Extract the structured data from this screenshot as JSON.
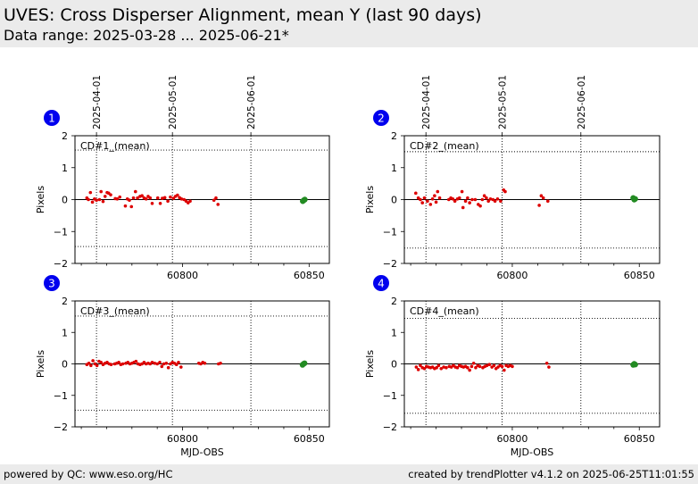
{
  "header": {
    "title": "UVES: Cross Disperser Alignment, mean Y (last 90 days)",
    "subtitle": "Data range: 2025-03-28 ... 2025-06-21*"
  },
  "footer": {
    "left": "powered by QC: www.eso.org/HC",
    "right": "created by trendPlotter v4.1.2 on 2025-06-25T11:01:55"
  },
  "colors": {
    "points": "#dd0000",
    "latest": "#228b22",
    "badge": "#0000ee"
  },
  "chart_data": [
    {
      "type": "scatter",
      "badge": "1",
      "label": "CD#1_(mean)",
      "ylabel": "Pixels",
      "xlabel": "",
      "xlim": [
        60757.5,
        60858
      ],
      "ylim": [
        -2,
        2
      ],
      "yticks": [
        -2,
        -1,
        0,
        1,
        2
      ],
      "ytick_labels": [
        "−2",
        "−1",
        "0",
        "1",
        "2"
      ],
      "xticks": [
        60800,
        60850
      ],
      "xtick_labels": [
        "60800",
        "60850"
      ],
      "date_ticks": [
        {
          "x": 60766,
          "label": "2025-04-01"
        },
        {
          "x": 60796,
          "label": "2025-05-01"
        },
        {
          "x": 60827,
          "label": "2025-06-01"
        }
      ],
      "hlines": [
        1.55,
        0,
        -1.47
      ],
      "points": [
        [
          60762.2,
          0.05
        ],
        [
          60762.8,
          0.0
        ],
        [
          60763.6,
          0.22
        ],
        [
          60764.4,
          -0.08
        ],
        [
          60765.2,
          0.02
        ],
        [
          60766,
          -0.02
        ],
        [
          60767.2,
          0.0
        ],
        [
          60767.8,
          0.25
        ],
        [
          60768.6,
          -0.06
        ],
        [
          60769.4,
          0.1
        ],
        [
          60770.2,
          0.22
        ],
        [
          60770.8,
          0.2
        ],
        [
          60771.6,
          0.15
        ],
        [
          60773.4,
          0.03
        ],
        [
          60774.2,
          0.02
        ],
        [
          60775.2,
          0.08
        ],
        [
          60777.4,
          -0.2
        ],
        [
          60778.2,
          0.02
        ],
        [
          60779,
          -0.02
        ],
        [
          60779.8,
          -0.22
        ],
        [
          60780.6,
          0.05
        ],
        [
          60781.4,
          0.25
        ],
        [
          60782.2,
          0.05
        ],
        [
          60783.2,
          0.1
        ],
        [
          60784,
          0.12
        ],
        [
          60784.8,
          0.05
        ],
        [
          60785.6,
          0.02
        ],
        [
          60786.4,
          0.1
        ],
        [
          60787.2,
          0.05
        ],
        [
          60788,
          -0.12
        ],
        [
          60790.2,
          0.05
        ],
        [
          60791.2,
          -0.12
        ],
        [
          60792,
          0.04
        ],
        [
          60793,
          0.06
        ],
        [
          60794.2,
          -0.05
        ],
        [
          60795.2,
          0.08
        ],
        [
          60796.4,
          0.04
        ],
        [
          60797.2,
          0.1
        ],
        [
          60798,
          0.14
        ],
        [
          60798.8,
          0.06
        ],
        [
          60799.6,
          0.02
        ],
        [
          60800.6,
          0.0
        ],
        [
          60801.4,
          -0.05
        ],
        [
          60802.2,
          -0.1
        ],
        [
          60803,
          -0.05
        ],
        [
          60812.4,
          -0.02
        ],
        [
          60813.2,
          0.05
        ],
        [
          60814,
          -0.15
        ]
      ],
      "latest": [
        [
          60847.5,
          -0.05
        ],
        [
          60847.9,
          -0.02
        ],
        [
          60848.3,
          0.0
        ]
      ]
    },
    {
      "type": "scatter",
      "badge": "2",
      "label": "CD#2_(mean)",
      "ylabel": "Pixels",
      "xlabel": "",
      "xlim": [
        60757.5,
        60858
      ],
      "ylim": [
        -2,
        2
      ],
      "yticks": [
        -2,
        -1,
        0,
        1,
        2
      ],
      "ytick_labels": [
        "−2",
        "−1",
        "0",
        "1",
        "2"
      ],
      "xticks": [
        60800,
        60850
      ],
      "xtick_labels": [
        "60800",
        "60850"
      ],
      "date_ticks": [
        {
          "x": 60766,
          "label": "2025-04-01"
        },
        {
          "x": 60796,
          "label": "2025-05-01"
        },
        {
          "x": 60827,
          "label": "2025-06-01"
        }
      ],
      "hlines": [
        1.5,
        0,
        -1.52
      ],
      "points": [
        [
          60762,
          0.2
        ],
        [
          60763,
          0.05
        ],
        [
          60763.8,
          0.0
        ],
        [
          60764.6,
          -0.1
        ],
        [
          60765.4,
          0.05
        ],
        [
          60766.6,
          -0.05
        ],
        [
          60767.8,
          -0.15
        ],
        [
          60768.6,
          0.02
        ],
        [
          60769.4,
          0.12
        ],
        [
          60770,
          -0.08
        ],
        [
          60770.6,
          0.25
        ],
        [
          60771.4,
          0.05
        ],
        [
          60775,
          0.0
        ],
        [
          60775.8,
          0.05
        ],
        [
          60776.6,
          0.02
        ],
        [
          60777.4,
          -0.05
        ],
        [
          60778.4,
          0.02
        ],
        [
          60779.2,
          0.05
        ],
        [
          60780.2,
          0.25
        ],
        [
          60780.6,
          -0.25
        ],
        [
          60781.6,
          -0.05
        ],
        [
          60782.4,
          0.05
        ],
        [
          60783.2,
          -0.1
        ],
        [
          60784.2,
          0.0
        ],
        [
          60785.4,
          0.0
        ],
        [
          60786.6,
          -0.15
        ],
        [
          60787.4,
          -0.2
        ],
        [
          60788.2,
          0.0
        ],
        [
          60789,
          0.12
        ],
        [
          60789.8,
          0.05
        ],
        [
          60790.6,
          -0.05
        ],
        [
          60791.4,
          0.02
        ],
        [
          60792.4,
          0.0
        ],
        [
          60793.2,
          -0.05
        ],
        [
          60794.2,
          0.02
        ],
        [
          60795.4,
          -0.05
        ],
        [
          60796.6,
          0.3
        ],
        [
          60797.2,
          0.25
        ],
        [
          60810.6,
          -0.18
        ],
        [
          60811.4,
          0.12
        ],
        [
          60812.2,
          0.05
        ],
        [
          60814,
          -0.05
        ]
      ],
      "latest": [
        [
          60847.6,
          0.05
        ],
        [
          60848,
          0.0
        ],
        [
          60848.4,
          0.02
        ]
      ]
    },
    {
      "type": "scatter",
      "badge": "3",
      "label": "CD#3_(mean)",
      "ylabel": "Pixels",
      "xlabel": "MJD-OBS",
      "xlim": [
        60757.5,
        60858
      ],
      "ylim": [
        -2,
        2
      ],
      "yticks": [
        -2,
        -1,
        0,
        1,
        2
      ],
      "ytick_labels": [
        "−2",
        "−1",
        "0",
        "1",
        "2"
      ],
      "xticks": [
        60800,
        60850
      ],
      "xtick_labels": [
        "60800",
        "60850"
      ],
      "date_ticks": [
        {
          "x": 60766,
          "label": "2025-04-01"
        },
        {
          "x": 60796,
          "label": "2025-05-01"
        },
        {
          "x": 60827,
          "label": "2025-06-01"
        }
      ],
      "hlines": [
        1.52,
        0,
        -1.47
      ],
      "points": [
        [
          60762.2,
          -0.02
        ],
        [
          60763,
          0.02
        ],
        [
          60763.8,
          -0.05
        ],
        [
          60764.6,
          0.1
        ],
        [
          60765.4,
          0.0
        ],
        [
          60766.2,
          -0.05
        ],
        [
          60767,
          0.08
        ],
        [
          60767.8,
          0.05
        ],
        [
          60768.6,
          -0.02
        ],
        [
          60769.4,
          0.02
        ],
        [
          60770.2,
          0.05
        ],
        [
          60771,
          0.0
        ],
        [
          60771.8,
          -0.02
        ],
        [
          60773.2,
          0.0
        ],
        [
          60774,
          0.02
        ],
        [
          60774.8,
          0.05
        ],
        [
          60775.6,
          -0.02
        ],
        [
          60776.4,
          0.0
        ],
        [
          60777.6,
          0.02
        ],
        [
          60778.4,
          0.05
        ],
        [
          60779.2,
          0.0
        ],
        [
          60780,
          0.02
        ],
        [
          60780.8,
          0.05
        ],
        [
          60781.6,
          0.08
        ],
        [
          60782.4,
          0.0
        ],
        [
          60783.2,
          -0.02
        ],
        [
          60784,
          0.0
        ],
        [
          60784.8,
          0.05
        ],
        [
          60785.6,
          0.0
        ],
        [
          60786.4,
          0.02
        ],
        [
          60787.2,
          0.0
        ],
        [
          60788,
          0.05
        ],
        [
          60789,
          0.02
        ],
        [
          60790,
          0.0
        ],
        [
          60791,
          0.05
        ],
        [
          60791.8,
          -0.08
        ],
        [
          60792.6,
          0.0
        ],
        [
          60793.6,
          0.02
        ],
        [
          60794.4,
          -0.12
        ],
        [
          60795.2,
          0.0
        ],
        [
          60796,
          0.05
        ],
        [
          60796.8,
          0.02
        ],
        [
          60797.6,
          -0.02
        ],
        [
          60798.4,
          0.05
        ],
        [
          60799.4,
          -0.1
        ],
        [
          60806.4,
          0.02
        ],
        [
          60807.2,
          0.0
        ],
        [
          60808,
          0.05
        ],
        [
          60808.8,
          0.02
        ],
        [
          60814.2,
          0.0
        ],
        [
          60815,
          0.02
        ]
      ],
      "latest": [
        [
          60847.4,
          -0.03
        ],
        [
          60847.8,
          0.0
        ],
        [
          60848.2,
          0.02
        ]
      ]
    },
    {
      "type": "scatter",
      "badge": "4",
      "label": "CD#4_(mean)",
      "ylabel": "Pixels",
      "xlabel": "MJD-OBS",
      "xlim": [
        60757.5,
        60858
      ],
      "ylim": [
        -2,
        2
      ],
      "yticks": [
        -2,
        -1,
        0,
        1,
        2
      ],
      "ytick_labels": [
        "−2",
        "−1",
        "0",
        "1",
        "2"
      ],
      "xticks": [
        60800,
        60850
      ],
      "xtick_labels": [
        "60800",
        "60850"
      ],
      "date_ticks": [
        {
          "x": 60766,
          "label": "2025-04-01"
        },
        {
          "x": 60796,
          "label": "2025-05-01"
        },
        {
          "x": 60827,
          "label": "2025-06-01"
        }
      ],
      "hlines": [
        1.45,
        0,
        -1.57
      ],
      "points": [
        [
          60762.2,
          -0.1
        ],
        [
          60763,
          -0.18
        ],
        [
          60763.8,
          -0.05
        ],
        [
          60764.6,
          -0.12
        ],
        [
          60765.4,
          -0.15
        ],
        [
          60766.2,
          -0.08
        ],
        [
          60767,
          -0.1
        ],
        [
          60767.8,
          -0.12
        ],
        [
          60768.6,
          -0.1
        ],
        [
          60769.4,
          -0.15
        ],
        [
          60770.2,
          -0.12
        ],
        [
          60771,
          -0.05
        ],
        [
          60772,
          -0.15
        ],
        [
          60773,
          -0.1
        ],
        [
          60774,
          -0.12
        ],
        [
          60775.2,
          -0.08
        ],
        [
          60776,
          -0.1
        ],
        [
          60776.8,
          -0.05
        ],
        [
          60777.6,
          -0.1
        ],
        [
          60778.4,
          -0.12
        ],
        [
          60779.2,
          -0.05
        ],
        [
          60780,
          -0.08
        ],
        [
          60780.8,
          -0.1
        ],
        [
          60781.6,
          -0.08
        ],
        [
          60782.4,
          -0.12
        ],
        [
          60783.2,
          -0.2
        ],
        [
          60784,
          -0.08
        ],
        [
          60784.8,
          0.02
        ],
        [
          60785.6,
          -0.12
        ],
        [
          60786.4,
          -0.05
        ],
        [
          60787.2,
          -0.08
        ],
        [
          60788.4,
          -0.12
        ],
        [
          60789.2,
          -0.08
        ],
        [
          60790,
          -0.05
        ],
        [
          60791,
          -0.02
        ],
        [
          60792,
          -0.1
        ],
        [
          60792.8,
          -0.05
        ],
        [
          60793.6,
          -0.15
        ],
        [
          60794.4,
          -0.1
        ],
        [
          60795.2,
          -0.05
        ],
        [
          60796,
          -0.08
        ],
        [
          60796.8,
          -0.2
        ],
        [
          60797.6,
          -0.05
        ],
        [
          60798.4,
          -0.08
        ],
        [
          60799.2,
          -0.05
        ],
        [
          60800,
          -0.08
        ],
        [
          60813.6,
          0.02
        ],
        [
          60814.4,
          -0.1
        ]
      ],
      "latest": [
        [
          60847.6,
          -0.03
        ],
        [
          60848,
          0.0
        ],
        [
          60848.4,
          -0.02
        ]
      ]
    }
  ]
}
